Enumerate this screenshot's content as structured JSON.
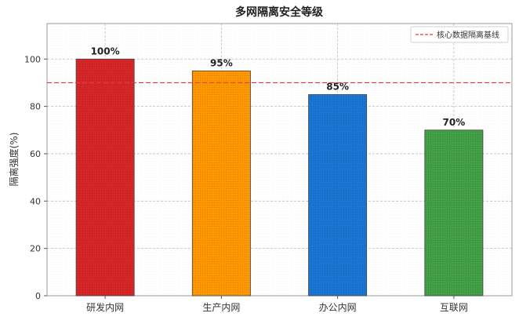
{
  "chart_data": {
    "type": "bar",
    "title": "多网隔离安全等级",
    "xlabel": "",
    "ylabel": "隔离强度(%)",
    "categories": [
      "研发内网",
      "生产内网",
      "办公内网",
      "互联网"
    ],
    "values": [
      100,
      95,
      85,
      70
    ],
    "value_labels": [
      "100%",
      "95%",
      "85%",
      "70%"
    ],
    "bar_colors": [
      "#d62728",
      "#ff9800",
      "#1976d2",
      "#43a047"
    ],
    "ylim": [
      0,
      115
    ],
    "yticks": [
      0,
      20,
      40,
      60,
      80,
      100
    ],
    "baseline": {
      "value": 90,
      "label": "核心数据隔离基线",
      "color": "#e53935",
      "style": "dashed"
    },
    "grid": true,
    "legend": {
      "position": "top-right"
    }
  }
}
